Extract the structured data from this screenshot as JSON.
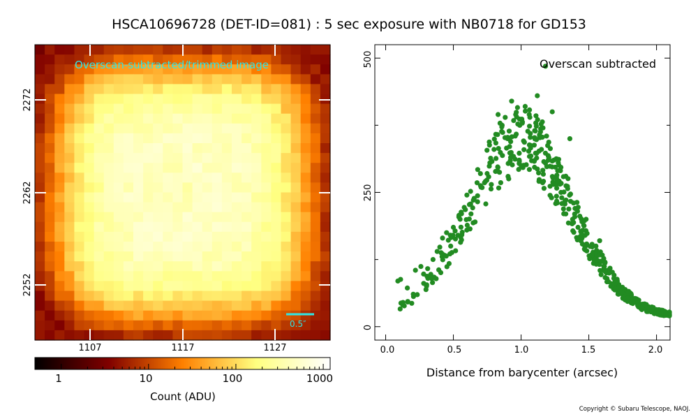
{
  "title": "HSCA10696728 (DET-ID=081) :  5 sec exposure with NB0718 for GD153",
  "copyright": "Copyright © Subaru Telescope, NAOJ.",
  "image_panel": {
    "label": "Overscan-subtracted/trimmed image",
    "label_color": "#2ee6e6",
    "scale_bar_label": "0.5″",
    "x_ticks": [
      "1107",
      "1117",
      "1127"
    ],
    "y_ticks": [
      "2272",
      "2262",
      "2252"
    ],
    "colorbar": {
      "ticks": [
        "1",
        "10",
        "100",
        "1000"
      ],
      "label": "Count (ADU)",
      "scale": "log",
      "range": [
        0.5,
        1200
      ],
      "colormap": "afmhot"
    }
  },
  "chart_data": {
    "type": "scatter",
    "title": "",
    "annotation": "Overscan subtracted",
    "xlabel": "Distance from barycenter (arcsec)",
    "ylabel": "",
    "xlim": [
      -0.08,
      2.1
    ],
    "ylim": [
      -25,
      525
    ],
    "x_ticks": [
      "0.0",
      "0.5",
      "1.0",
      "1.5",
      "2.0"
    ],
    "y_ticks": [
      "0",
      "250",
      "500"
    ],
    "marker_color": "#228b22",
    "series": [
      {
        "profile_model": "gaussian",
        "center": 1.0,
        "peak": 330,
        "sigma": 0.38,
        "background": 18,
        "points": [
          [
            0.09,
            85
          ],
          [
            0.11,
            88
          ],
          [
            0.16,
            72
          ],
          [
            0.22,
            105
          ],
          [
            0.26,
            112
          ],
          [
            0.28,
            98
          ],
          [
            0.31,
            108
          ],
          [
            0.35,
            125
          ],
          [
            0.38,
            140
          ],
          [
            0.4,
            148
          ],
          [
            0.42,
            165
          ],
          [
            0.45,
            175
          ],
          [
            0.48,
            150
          ],
          [
            0.5,
            185
          ],
          [
            0.55,
            200
          ],
          [
            0.58,
            222
          ],
          [
            0.6,
            245
          ],
          [
            0.63,
            210
          ],
          [
            0.66,
            195
          ],
          [
            0.7,
            285
          ],
          [
            0.73,
            268
          ],
          [
            0.77,
            305
          ],
          [
            0.8,
            330
          ],
          [
            0.83,
            395
          ],
          [
            0.86,
            375
          ],
          [
            0.9,
            350
          ],
          [
            0.93,
            420
          ],
          [
            0.96,
            395
          ],
          [
            0.99,
            375
          ],
          [
            1.0,
            300
          ],
          [
            1.03,
            410
          ],
          [
            1.06,
            395
          ],
          [
            1.1,
            365
          ],
          [
            1.12,
            430
          ],
          [
            1.15,
            330
          ],
          [
            1.18,
            485
          ],
          [
            1.2,
            310
          ],
          [
            1.23,
            400
          ],
          [
            1.26,
            265
          ],
          [
            1.3,
            240
          ],
          [
            1.33,
            280
          ],
          [
            1.36,
            350
          ],
          [
            1.38,
            200
          ],
          [
            1.42,
            185
          ],
          [
            1.45,
            165
          ],
          [
            1.48,
            200
          ],
          [
            1.52,
            150
          ],
          [
            1.55,
            135
          ],
          [
            1.58,
            160
          ],
          [
            1.62,
            120
          ],
          [
            1.65,
            100
          ],
          [
            1.7,
            82
          ],
          [
            1.75,
            70
          ],
          [
            1.8,
            60
          ],
          [
            1.85,
            52
          ],
          [
            1.9,
            42
          ],
          [
            1.95,
            35
          ],
          [
            2.0,
            30
          ],
          [
            2.05,
            25
          ],
          [
            2.08,
            22
          ]
        ]
      }
    ]
  }
}
